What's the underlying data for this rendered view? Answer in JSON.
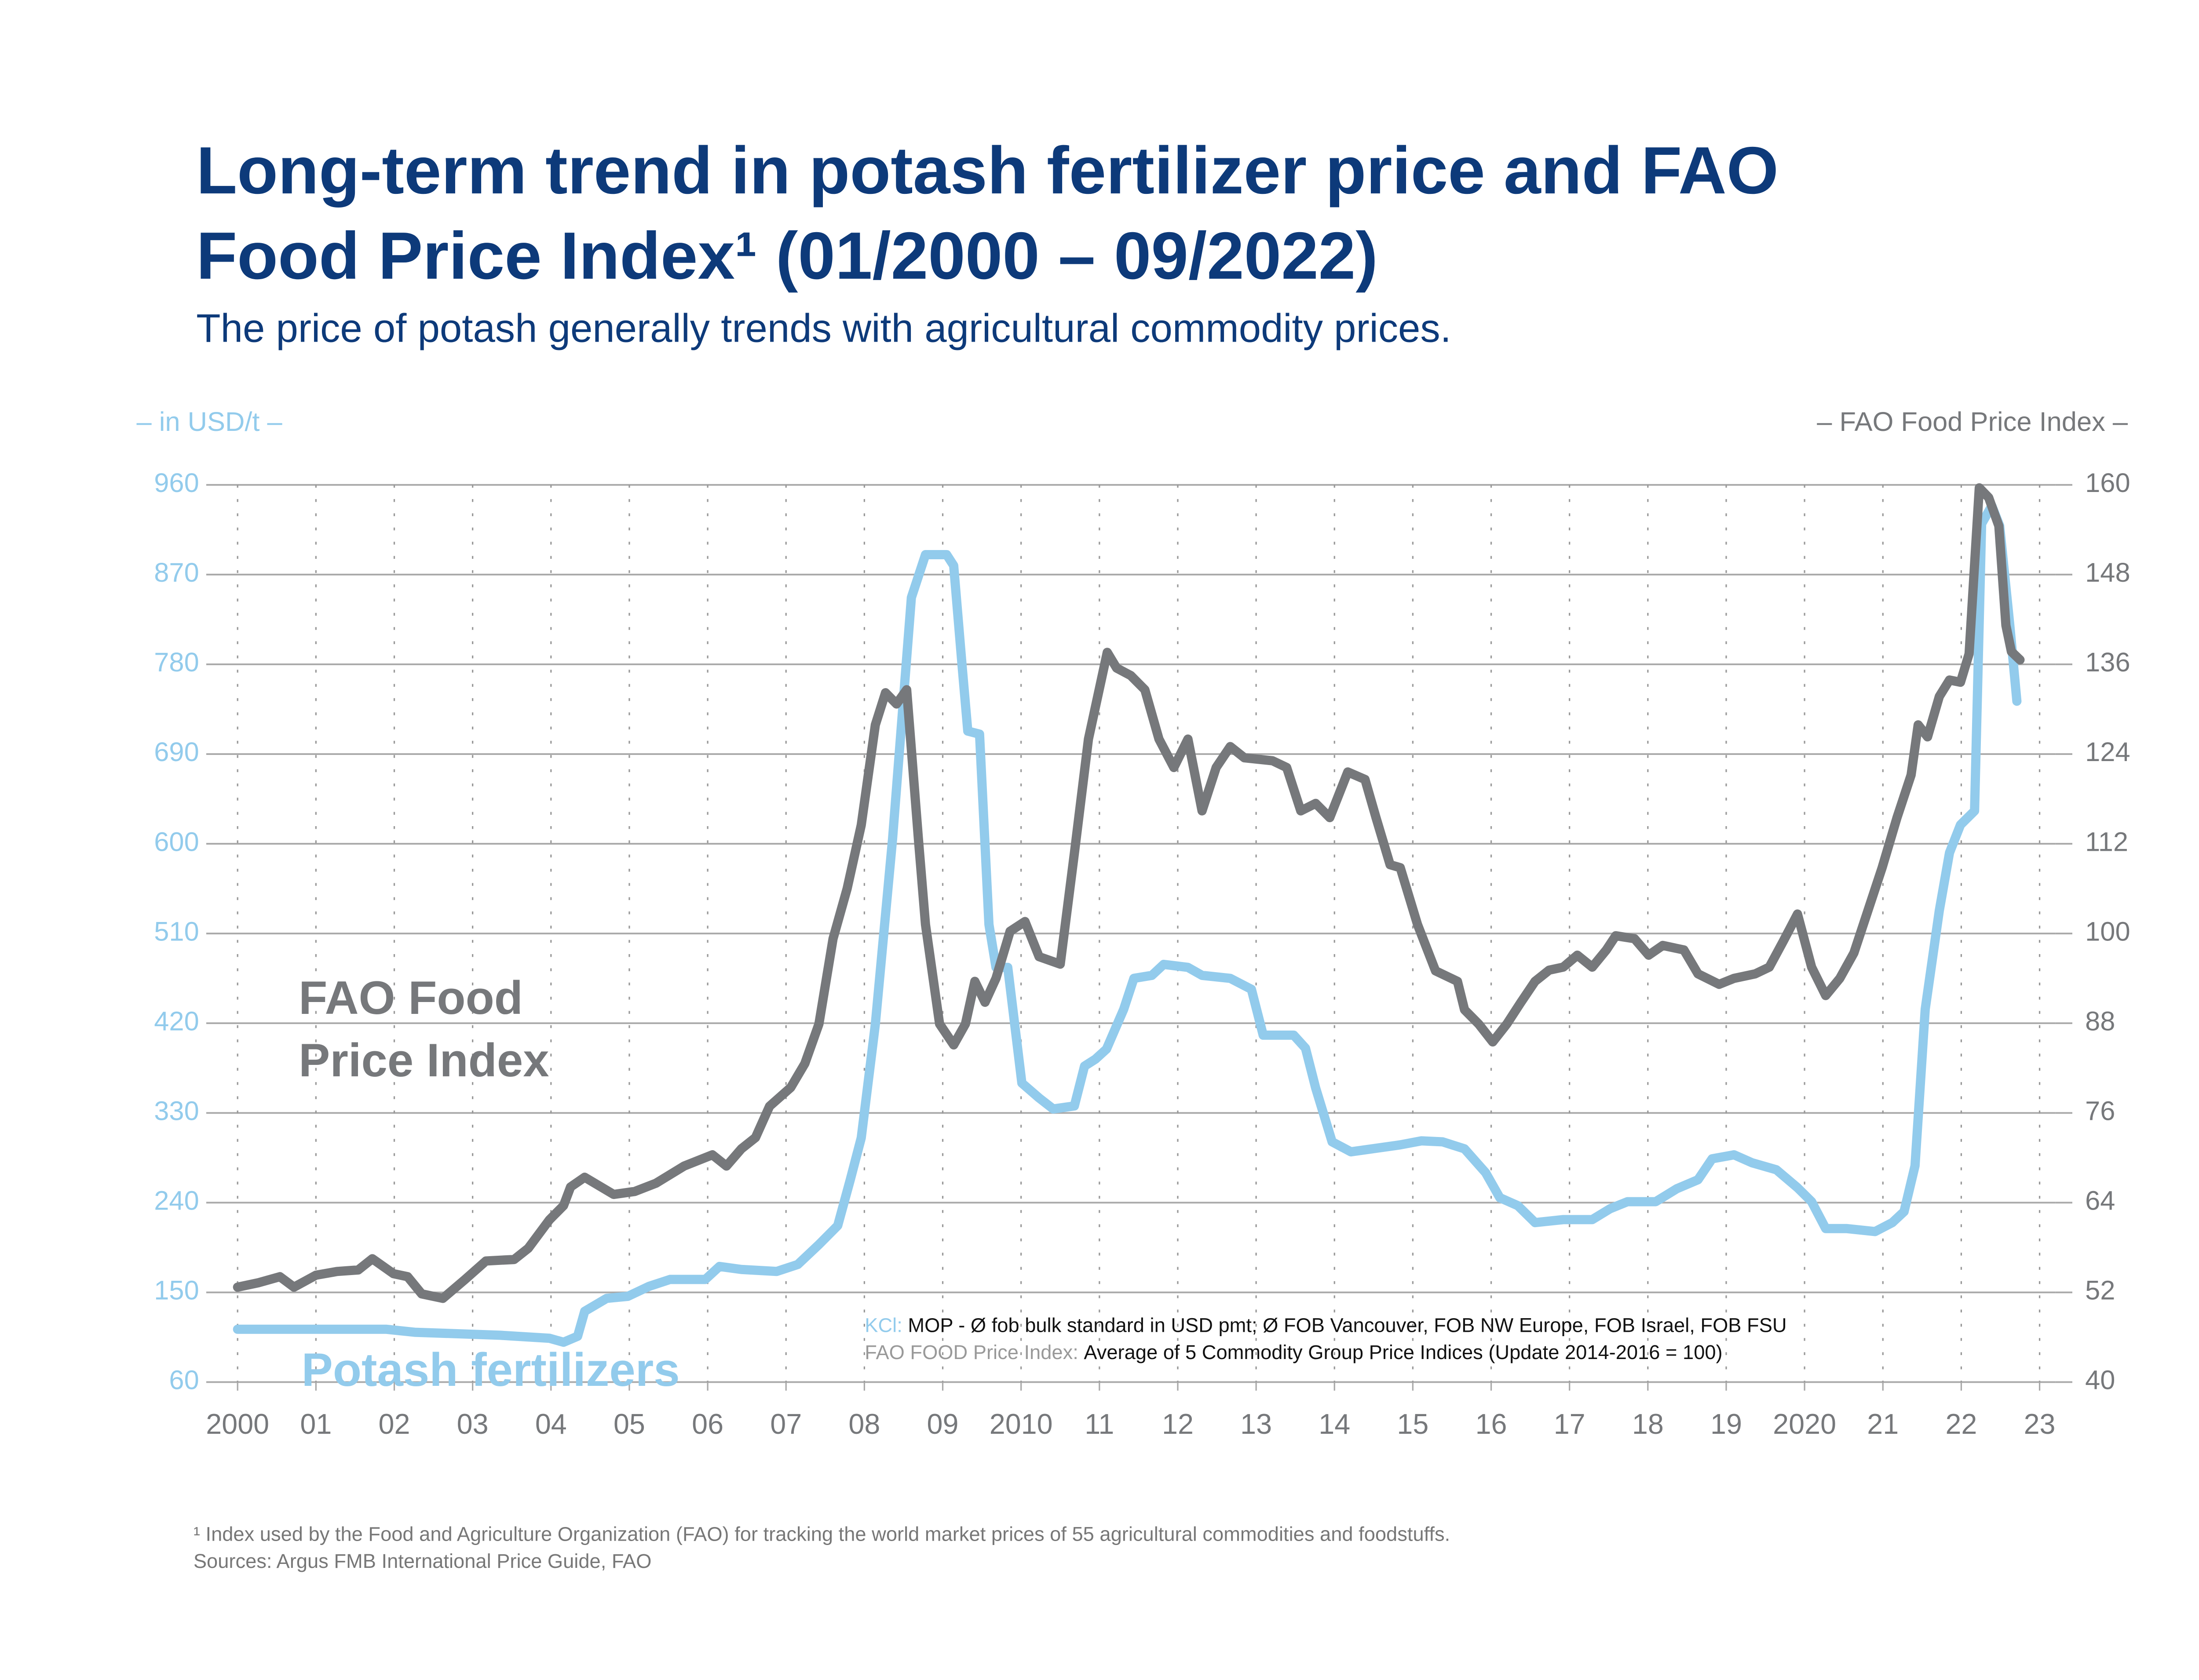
{
  "chart_data": {
    "type": "line",
    "title": "Long-term trend in potash fertilizer price and FAO Food Price Index¹ (01/2000 – 09/2022)",
    "subtitle": "The price of potash generally trends with agricultural commodity prices.",
    "y_label": "– in USD/t –",
    "y2_label": "– FAO Food Price Index –",
    "xlim": [
      1999.6,
      2023.2
    ],
    "xticks": [
      {
        "value": 2000,
        "label": "2000"
      },
      {
        "value": 2001,
        "label": "01"
      },
      {
        "value": 2002,
        "label": "02"
      },
      {
        "value": 2003,
        "label": "03"
      },
      {
        "value": 2004,
        "label": "04"
      },
      {
        "value": 2005,
        "label": "05"
      },
      {
        "value": 2006,
        "label": "06"
      },
      {
        "value": 2007,
        "label": "07"
      },
      {
        "value": 2008,
        "label": "08"
      },
      {
        "value": 2009,
        "label": "09"
      },
      {
        "value": 2010,
        "label": "2010"
      },
      {
        "value": 2011,
        "label": "11"
      },
      {
        "value": 2012,
        "label": "12"
      },
      {
        "value": 2013,
        "label": "13"
      },
      {
        "value": 2014,
        "label": "14"
      },
      {
        "value": 2015,
        "label": "15"
      },
      {
        "value": 2016,
        "label": "16"
      },
      {
        "value": 2017,
        "label": "17"
      },
      {
        "value": 2018,
        "label": "18"
      },
      {
        "value": 2019,
        "label": "19"
      },
      {
        "value": 2020,
        "label": "2020"
      },
      {
        "value": 2021,
        "label": "21"
      },
      {
        "value": 2022,
        "label": "22"
      },
      {
        "value": 2023,
        "label": "23"
      }
    ],
    "ylim": [
      60,
      960
    ],
    "yticks": [
      60,
      150,
      240,
      330,
      420,
      510,
      600,
      690,
      780,
      870,
      960
    ],
    "y2lim": [
      40,
      160
    ],
    "y2ticks": [
      40,
      52,
      64,
      76,
      88,
      100,
      112,
      124,
      136,
      148,
      160
    ],
    "grid": true,
    "series": [
      {
        "name": "Potash fertilizers",
        "color": "#92cbec",
        "axis": "y",
        "x": [
          2000.0,
          2001.9,
          2002.26,
          2003.35,
          2003.98,
          2004.16,
          2004.34,
          2004.43,
          2004.71,
          2004.98,
          2005.25,
          2005.52,
          2005.97,
          2006.15,
          2006.43,
          2006.88,
          2007.15,
          2007.42,
          2007.66,
          2007.82,
          2007.96,
          2008.14,
          2008.36,
          2008.6,
          2008.78,
          2009.05,
          2009.14,
          2009.25,
          2009.32,
          2009.47,
          2009.59,
          2009.68,
          2009.83,
          2010.01,
          2010.23,
          2010.41,
          2010.68,
          2010.81,
          2010.95,
          2011.09,
          2011.31,
          2011.44,
          2011.67,
          2011.82,
          2012.13,
          2012.31,
          2012.67,
          2012.94,
          2013.09,
          2013.48,
          2013.63,
          2013.76,
          2013.97,
          2014.21,
          2014.84,
          2015.11,
          2015.38,
          2015.66,
          2015.93,
          2016.11,
          2016.34,
          2016.56,
          2016.92,
          2017.29,
          2017.52,
          2017.74,
          2018.1,
          2018.37,
          2018.64,
          2018.82,
          2019.1,
          2019.33,
          2019.64,
          2019.91,
          2020.09,
          2020.27,
          2020.54,
          2020.9,
          2021.12,
          2021.27,
          2021.41,
          2021.54,
          2021.72,
          2021.85,
          2021.99,
          2022.17,
          2022.26,
          2022.39,
          2022.49,
          2022.62,
          2022.71
        ],
        "values": [
          113,
          113,
          110,
          107,
          104,
          100,
          106,
          131,
          144,
          146,
          156,
          163,
          163,
          176,
          173,
          171,
          178,
          198,
          217,
          263,
          305,
          419,
          605,
          847,
          890,
          890,
          879,
          776,
          713,
          710,
          519,
          476,
          476,
          360,
          345,
          334,
          337,
          377,
          384,
          394,
          434,
          465,
          468,
          479,
          476,
          468,
          465,
          454,
          408,
          408,
          395,
          355,
          301,
          291,
          298,
          302,
          301,
          294,
          270,
          245,
          237,
          220,
          223,
          223,
          234,
          241,
          241,
          254,
          263,
          284,
          288,
          280,
          273,
          255,
          241,
          214,
          214,
          211,
          220,
          231,
          277,
          434,
          533,
          591,
          619,
          633,
          921,
          939,
          919,
          819,
          743
        ]
      },
      {
        "name": "FAO Food Price Index",
        "color": "#76787b",
        "axis": "y2",
        "x": [
          2000.0,
          2000.27,
          2000.54,
          2000.72,
          2001.0,
          2001.27,
          2001.54,
          2001.72,
          2001.99,
          2002.17,
          2002.35,
          2002.62,
          2002.9,
          2003.17,
          2003.53,
          2003.71,
          2003.98,
          2004.16,
          2004.25,
          2004.43,
          2004.8,
          2005.07,
          2005.34,
          2005.7,
          2006.06,
          2006.24,
          2006.43,
          2006.61,
          2006.79,
          2007.06,
          2007.24,
          2007.42,
          2007.6,
          2007.78,
          2007.96,
          2008.14,
          2008.27,
          2008.41,
          2008.54,
          2008.69,
          2008.78,
          2008.96,
          2009.14,
          2009.29,
          2009.41,
          2009.54,
          2009.68,
          2009.86,
          2010.05,
          2010.23,
          2010.5,
          2010.68,
          2010.86,
          2011.1,
          2011.22,
          2011.4,
          2011.58,
          2011.76,
          2011.95,
          2012.13,
          2012.31,
          2012.49,
          2012.67,
          2012.85,
          2013.21,
          2013.39,
          2013.57,
          2013.76,
          2013.94,
          2014.17,
          2014.39,
          2014.53,
          2014.71,
          2014.84,
          2015.06,
          2015.29,
          2015.57,
          2015.66,
          2015.84,
          2016.02,
          2016.2,
          2016.38,
          2016.56,
          2016.74,
          2016.92,
          2017.1,
          2017.29,
          2017.47,
          2017.59,
          2017.83,
          2018.01,
          2018.19,
          2018.46,
          2018.64,
          2018.91,
          2019.1,
          2019.37,
          2019.55,
          2019.73,
          2019.91,
          2020.09,
          2020.27,
          2020.45,
          2020.63,
          2020.81,
          2020.99,
          2021.18,
          2021.36,
          2021.45,
          2021.57,
          2021.72,
          2021.85,
          2021.99,
          2022.1,
          2022.23,
          2022.35,
          2022.48,
          2022.57,
          2022.64,
          2022.75
        ],
        "values": [
          52.7,
          53.3,
          54.1,
          52.7,
          54.3,
          54.8,
          55.0,
          56.5,
          54.5,
          54.1,
          51.8,
          51.2,
          53.7,
          56.2,
          56.4,
          57.9,
          61.7,
          63.6,
          66.1,
          67.4,
          65.1,
          65.5,
          66.6,
          68.9,
          70.4,
          68.9,
          71.2,
          72.7,
          76.9,
          79.4,
          82.6,
          87.9,
          99.3,
          106.0,
          114.5,
          127.9,
          132.2,
          130.7,
          132.6,
          112.6,
          101.2,
          87.9,
          85.1,
          87.9,
          93.6,
          90.8,
          94.0,
          100.3,
          101.6,
          96.9,
          95.9,
          110.7,
          126.0,
          137.6,
          135.5,
          134.5,
          132.6,
          126.0,
          122.2,
          126.0,
          116.4,
          122.2,
          125.0,
          123.5,
          123.1,
          122.2,
          116.4,
          117.4,
          115.5,
          121.6,
          120.6,
          115.5,
          109.2,
          108.8,
          101.2,
          95.0,
          93.6,
          89.8,
          87.9,
          85.5,
          87.9,
          90.8,
          93.6,
          95.1,
          95.5,
          97.1,
          95.5,
          97.8,
          99.7,
          99.3,
          97.1,
          98.4,
          97.8,
          94.6,
          93.2,
          94.0,
          94.6,
          95.5,
          99.0,
          102.6,
          95.5,
          91.7,
          94.0,
          97.4,
          103.1,
          108.8,
          115.5,
          121.2,
          127.9,
          126.3,
          131.7,
          133.9,
          133.6,
          137.4,
          159.6,
          158.3,
          154.5,
          141.2,
          137.7,
          136.6
        ]
      }
    ],
    "notes": [
      {
        "label": "KCl:",
        "text": "MOP - Ø fob bulk standard in USD pmt; Ø FOB Vancouver, FOB NW Europe, FOB Israel, FOB FSU"
      },
      {
        "label": "FAO FOOD Price Index:",
        "text": "Average of 5 Commodity Group Price Indices (Update 2014-2016 = 100)"
      }
    ],
    "footnotes": [
      "¹ Index used by the Food and Agriculture Organization (FAO) for tracking the world market prices of 55 agricultural commodities and foodstuffs.",
      "Sources: Argus FMB International Price Guide, FAO"
    ]
  }
}
